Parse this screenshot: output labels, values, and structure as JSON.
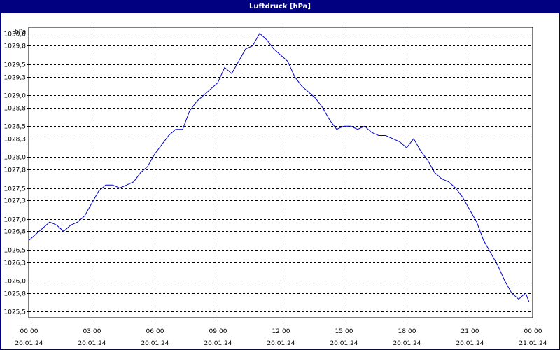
{
  "window": {
    "title": "Luftdruck [hPa]"
  },
  "colors": {
    "titlebar": "#000080",
    "line": "#0000cc",
    "grid": "#000000"
  },
  "chart_data": {
    "type": "line",
    "title": "Luftdruck [hPa]",
    "ylabel": "hPa",
    "xlabel": "",
    "ylim": [
      1025.4,
      1030.1
    ],
    "xlim": [
      "20.01.24 00:00",
      "21.01.24 00:00"
    ],
    "grid": true,
    "legend": "none",
    "y_ticks": [
      "1025,5",
      "1025,8",
      "1026,0",
      "1026,3",
      "1026,5",
      "1026,8",
      "1027,0",
      "1027,3",
      "1027,5",
      "1027,8",
      "1028,0",
      "1028,3",
      "1028,5",
      "1028,8",
      "1029,0",
      "1029,3",
      "1029,5",
      "1029,8",
      "1030,0"
    ],
    "x_ticks": [
      {
        "time": "00:00",
        "date": "20.01.24"
      },
      {
        "time": "03:00",
        "date": "20.01.24"
      },
      {
        "time": "06:00",
        "date": "20.01.24"
      },
      {
        "time": "09:00",
        "date": "20.01.24"
      },
      {
        "time": "12:00",
        "date": "20.01.24"
      },
      {
        "time": "15:00",
        "date": "20.01.24"
      },
      {
        "time": "18:00",
        "date": "20.01.24"
      },
      {
        "time": "21:00",
        "date": "20.01.24"
      },
      {
        "time": "00:00",
        "date": "21.01.24"
      }
    ],
    "series": [
      {
        "x": [
          "00:00",
          "00:20",
          "00:40",
          "01:00",
          "01:20",
          "01:40",
          "02:00",
          "02:20",
          "02:40",
          "03:00",
          "03:20",
          "03:40",
          "04:00",
          "04:20",
          "04:40",
          "05:00",
          "05:20",
          "05:40",
          "06:00",
          "06:20",
          "06:40",
          "07:00",
          "07:20",
          "07:40",
          "08:00",
          "08:20",
          "08:40",
          "09:00",
          "09:20",
          "09:40",
          "10:00",
          "10:20",
          "10:40",
          "11:00",
          "11:20",
          "11:40",
          "12:00",
          "12:20",
          "12:40",
          "13:00",
          "13:20",
          "13:40",
          "14:00",
          "14:20",
          "14:40",
          "15:00",
          "15:20",
          "15:40",
          "16:00",
          "16:20",
          "16:40",
          "17:00",
          "17:20",
          "17:40",
          "18:00",
          "18:20",
          "18:40",
          "19:00",
          "19:20",
          "19:40",
          "20:00",
          "20:20",
          "20:40",
          "21:00",
          "21:20",
          "21:40",
          "22:00",
          "22:20",
          "22:40",
          "23:00",
          "23:20",
          "23:40",
          "23:50"
        ],
        "values": [
          1026.65,
          1026.75,
          1026.85,
          1026.95,
          1026.9,
          1026.8,
          1026.9,
          1026.95,
          1027.05,
          1027.25,
          1027.45,
          1027.55,
          1027.55,
          1027.5,
          1027.55,
          1027.6,
          1027.75,
          1027.85,
          1028.05,
          1028.2,
          1028.35,
          1028.45,
          1028.45,
          1028.75,
          1028.9,
          1029.0,
          1029.1,
          1029.2,
          1029.45,
          1029.35,
          1029.55,
          1029.75,
          1029.8,
          1030.0,
          1029.9,
          1029.75,
          1029.65,
          1029.55,
          1029.3,
          1029.15,
          1029.05,
          1028.95,
          1028.8,
          1028.6,
          1028.45,
          1028.5,
          1028.5,
          1028.45,
          1028.5,
          1028.4,
          1028.35,
          1028.35,
          1028.3,
          1028.25,
          1028.15,
          1028.3,
          1028.1,
          1027.95,
          1027.75,
          1027.65,
          1027.6,
          1027.5,
          1027.35,
          1027.15,
          1026.95,
          1026.65,
          1026.45,
          1026.25,
          1026.0,
          1025.8,
          1025.7,
          1025.8,
          1025.65
        ]
      }
    ]
  }
}
